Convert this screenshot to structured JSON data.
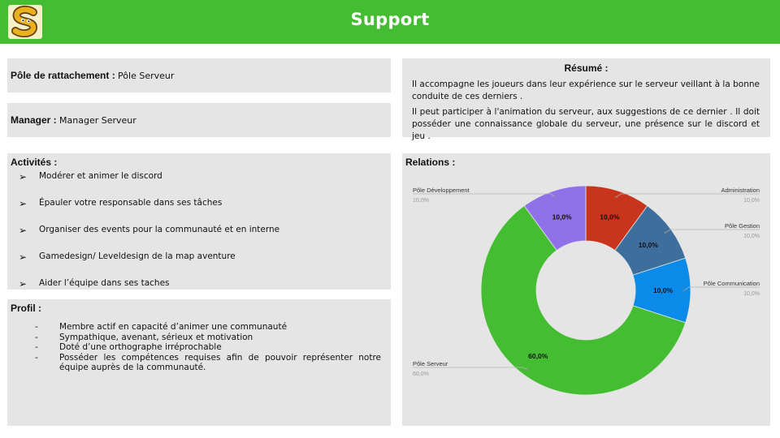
{
  "header": {
    "title": "Support",
    "logo_icon": "snake-s-logo"
  },
  "pole": {
    "label": "Pôle de rattachement :",
    "value": "Pôle Serveur"
  },
  "manager": {
    "label": "Manager :",
    "value": "Manager Serveur"
  },
  "resume": {
    "title": "Résumé :",
    "paragraphs": [
      "Il accompagne les joueurs dans leur expérience sur le serveur veillant à la bonne conduite de ces derniers .",
      "Il peut participer à l'animation du serveur, aux suggestions de ce dernier . Il doit posséder une connaissance globale du serveur, une présence sur le discord et jeu ."
    ]
  },
  "activites": {
    "title": "Activités :",
    "bullet": "➢",
    "items": [
      "Modérer et animer le discord",
      "Épauler votre responsable dans ses tâches",
      "Organiser des events pour la communauté et en interne",
      "Gamedesign/ Leveldesign de la map aventure",
      "Aider l’équipe dans ses taches"
    ]
  },
  "profil": {
    "title": "Profil :",
    "bullet": "-",
    "items": [
      "Membre actif en capacité d’animer une communauté",
      "Sympathique, avenant, sérieux et motivation",
      "Doté d’une orthographe irréprochable",
      "Posséder les compétences requises afin de pouvoir représenter notre équipe auprès de la communauté."
    ]
  },
  "relations": {
    "title": "Relations :"
  },
  "chart_data": {
    "type": "pie",
    "donut": true,
    "labels": [
      "Administration",
      "Pôle Gestion",
      "Pôle Communication",
      "Pôle Serveur",
      "Pôle Développement"
    ],
    "values": [
      10,
      10,
      10,
      60,
      10
    ],
    "display_values": [
      "10,0%",
      "10,0%",
      "10,0%",
      "60,0%",
      "10,0%"
    ],
    "colors": [
      "#c9351c",
      "#3e6e9c",
      "#0a8be9",
      "#44bd32",
      "#9171e9"
    ]
  }
}
